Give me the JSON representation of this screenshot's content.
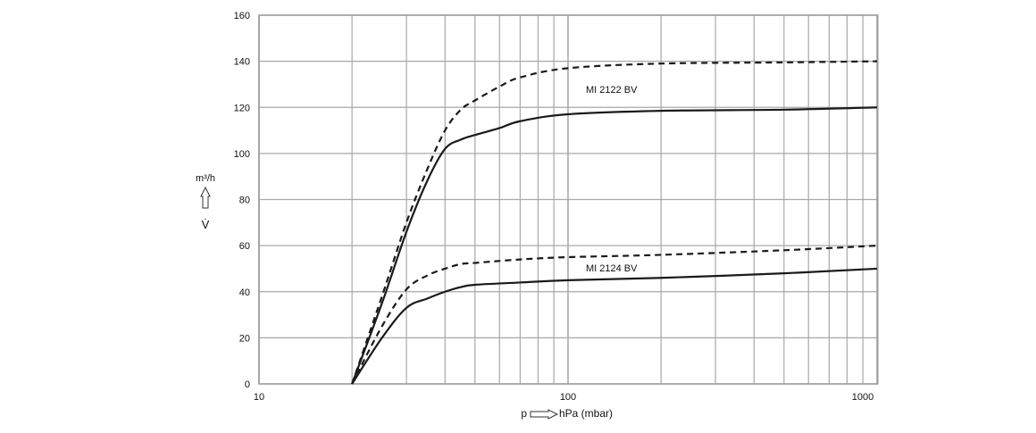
{
  "chart_data": {
    "type": "line",
    "xscale": "log",
    "xlim": [
      10,
      1005
    ],
    "ylim": [
      0,
      160
    ],
    "grid": true,
    "x_ticks": [
      10,
      100,
      1000
    ],
    "x_tick_labels": [
      "10",
      "100",
      "1000"
    ],
    "y_ticks": [
      0,
      20,
      40,
      60,
      80,
      100,
      120,
      140,
      160
    ],
    "y_tick_labels": [
      "0",
      "20",
      "40",
      "60",
      "80",
      "100",
      "120",
      "140",
      "160"
    ],
    "xlabel_left": "p",
    "xlabel_right": "hPa (mbar)",
    "ylabel_unit": "m³/h",
    "ylabel_symbol": "V̇",
    "annotations": [
      "MI 2122 BV",
      "MI 2124 BV"
    ],
    "series": [
      {
        "style": "dashed",
        "group": "MI 2122 BV",
        "x": [
          20,
          25,
          30,
          35,
          40,
          45,
          50,
          60,
          70,
          100,
          200,
          500,
          1000
        ],
        "y": [
          0,
          38,
          70,
          93,
          110,
          119,
          123,
          129,
          133,
          137,
          139,
          139.5,
          140
        ]
      },
      {
        "style": "solid",
        "group": "MI 2122 BV",
        "x": [
          20,
          25,
          30,
          35,
          40,
          45,
          50,
          60,
          70,
          100,
          200,
          500,
          1000
        ],
        "y": [
          0,
          35,
          66,
          88,
          102,
          106,
          108,
          111,
          114,
          117,
          118.5,
          119,
          120
        ]
      },
      {
        "style": "dashed",
        "group": "MI 2124 BV",
        "x": [
          20,
          25,
          30,
          35,
          40,
          45,
          50,
          70,
          100,
          200,
          500,
          1000
        ],
        "y": [
          0,
          25,
          41,
          47,
          50,
          52,
          52.5,
          54,
          55,
          56,
          58,
          60
        ]
      },
      {
        "style": "solid",
        "group": "MI 2124 BV",
        "x": [
          20,
          25,
          30,
          35,
          40,
          45,
          50,
          70,
          100,
          200,
          500,
          1000
        ],
        "y": [
          0,
          20,
          33,
          37,
          40,
          42,
          43,
          44,
          45,
          46,
          48,
          50
        ]
      }
    ]
  }
}
